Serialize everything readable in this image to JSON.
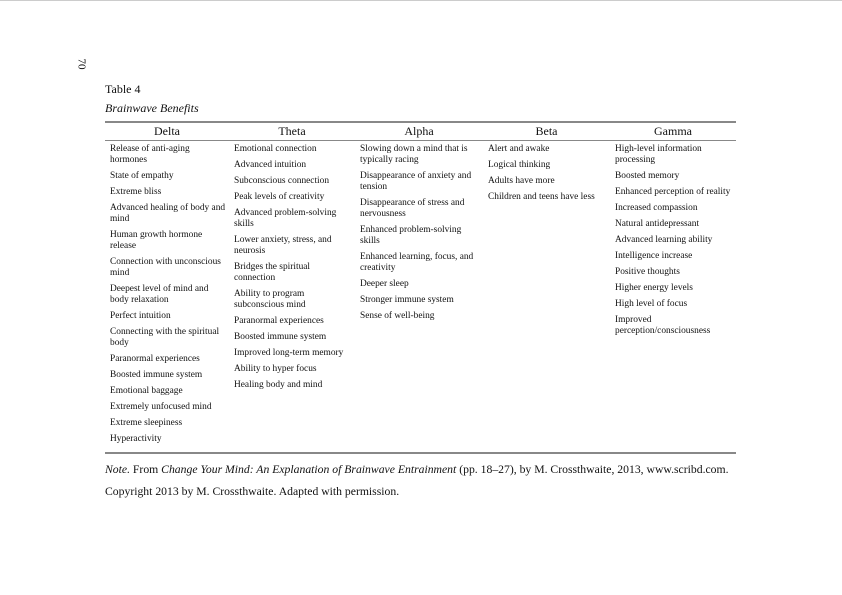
{
  "page_number": "70",
  "table_number": "Table 4",
  "table_title": "Brainwave Benefits",
  "columns": [
    {
      "header": "Delta",
      "items": [
        "Release of anti-aging hormones",
        "State of empathy",
        "Extreme bliss",
        "Advanced healing of body and mind",
        "Human growth hormone release",
        "Connection with unconscious mind",
        "Deepest level of mind and body relaxation",
        "Perfect intuition",
        "Connecting with the spiritual body",
        "Paranormal experiences",
        "Boosted immune system",
        "Emotional baggage",
        "Extremely unfocused mind",
        "Extreme sleepiness",
        "Hyperactivity"
      ]
    },
    {
      "header": "Theta",
      "items": [
        "Emotional connection",
        "Advanced intuition",
        "Subconscious connection",
        "Peak levels of creativity",
        "Advanced problem-solving skills",
        "Lower anxiety, stress, and neurosis",
        "Bridges the spiritual connection",
        "Ability to program subconscious mind",
        "Paranormal experiences",
        "Boosted immune system",
        "Improved long-term memory",
        "Ability to hyper focus",
        "Healing body and mind"
      ]
    },
    {
      "header": "Alpha",
      "items": [
        "Slowing down a mind that is typically racing",
        "Disappearance of anxiety and tension",
        "Disappearance of stress and nervousness",
        "Enhanced problem-solving skills",
        "Enhanced learning, focus, and creativity",
        "Deeper sleep",
        "Stronger immune system",
        "Sense of well-being"
      ]
    },
    {
      "header": "Beta",
      "items": [
        "Alert and awake",
        "Logical thinking",
        "Adults have more",
        "Children and teens have less"
      ]
    },
    {
      "header": "Gamma",
      "items": [
        "High-level information processing",
        "Boosted memory",
        "Enhanced perception of reality",
        "Increased compassion",
        "Natural antidepressant",
        "Advanced learning ability",
        "Intelligence increase",
        "Positive thoughts",
        "Higher energy levels",
        "High level of focus",
        "Improved perception/consciousness"
      ]
    }
  ],
  "note": {
    "label": "Note.",
    "prefix": " From ",
    "source_title": "Change Your Mind: An Explanation of Brainwave Entrainment",
    "suffix": " (pp. 18–27), by M. Crossthwaite, 2013, www.scribd.com. Copyright 2013 by M. Crossthwaite.  Adapted with permission."
  }
}
